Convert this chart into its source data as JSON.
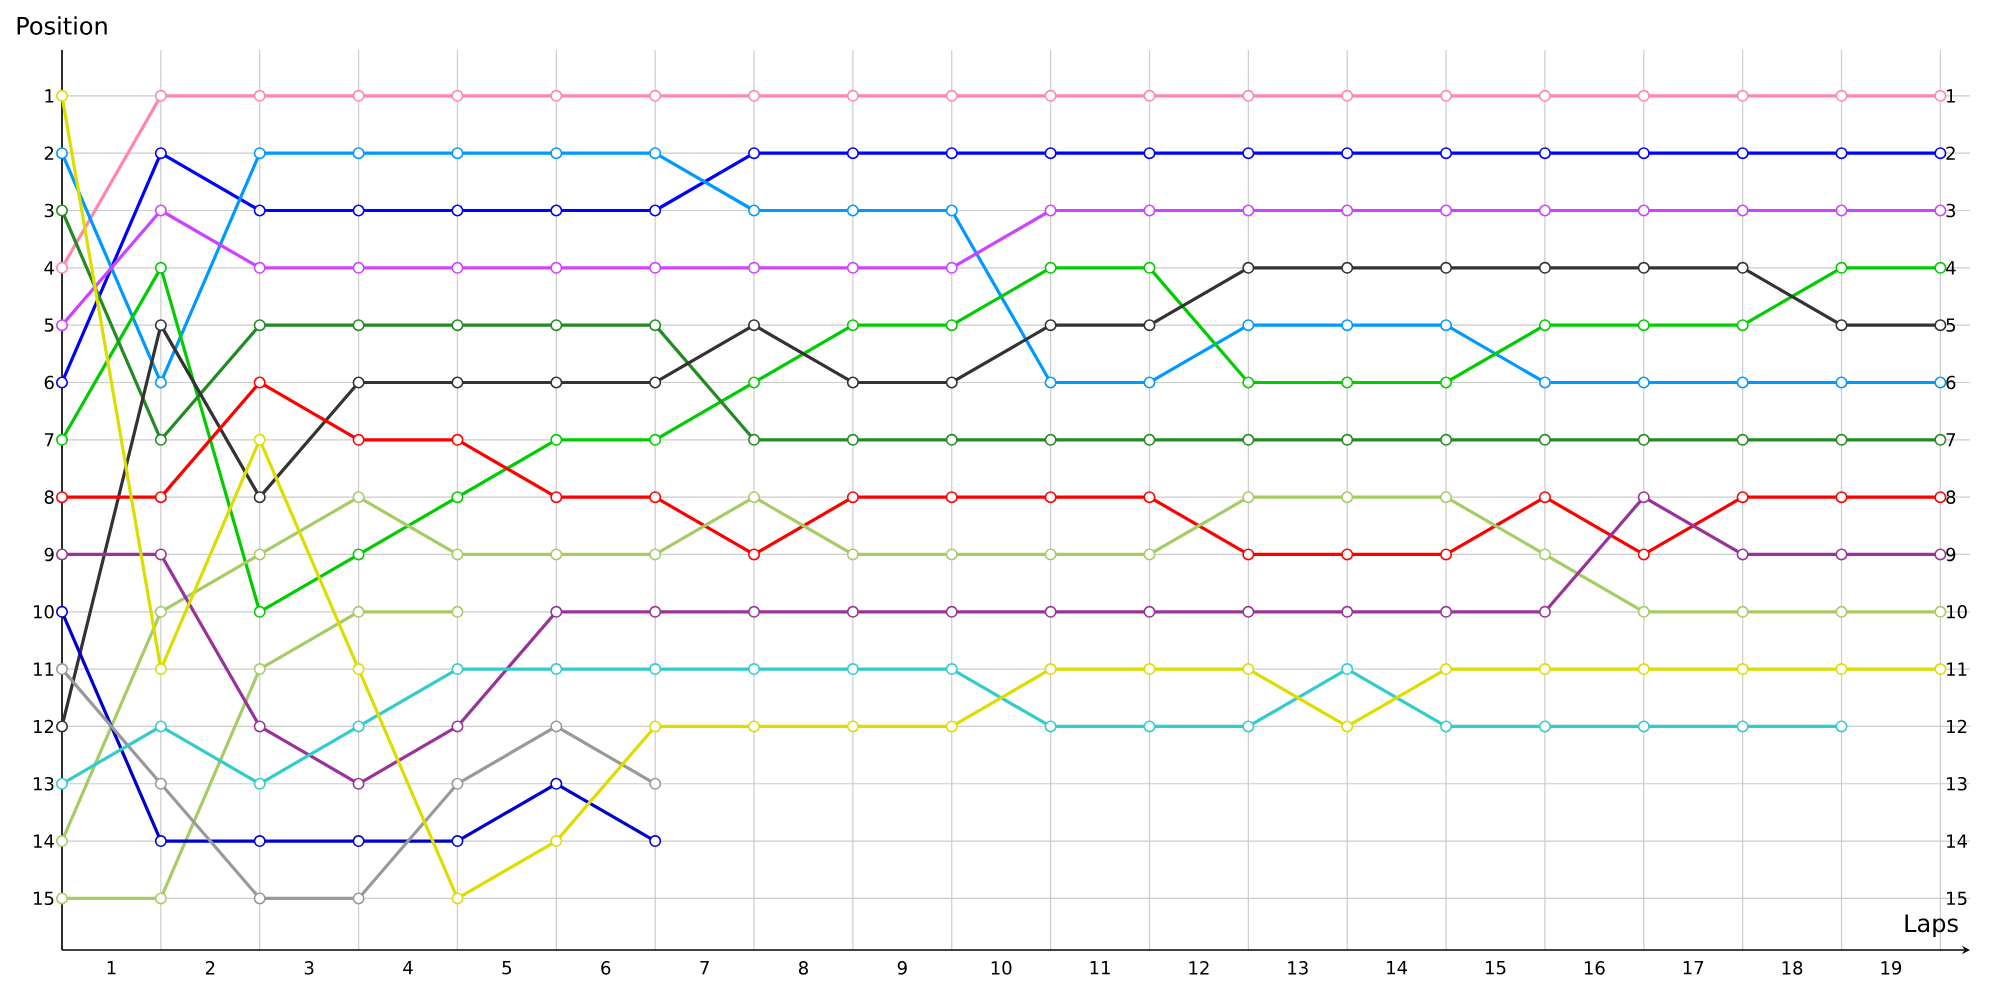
{
  "chart_data": {
    "type": "line",
    "xlabel": "Laps",
    "ylabel": "Position",
    "x": [
      0,
      1,
      2,
      3,
      4,
      5,
      6,
      7,
      8,
      9,
      10,
      11,
      12,
      13,
      14,
      15,
      16,
      17,
      18,
      19
    ],
    "xlim": [
      0,
      19.3
    ],
    "ylim": [
      15.9,
      0.2
    ],
    "y2lim": [
      15.9,
      0.2
    ],
    "xticks": [
      {
        "value": 0,
        "label": null
      },
      {
        "value": 1,
        "label": null
      },
      {
        "value": 2,
        "label": null
      },
      {
        "value": 3,
        "label": null
      },
      {
        "value": 4,
        "label": null
      },
      {
        "value": 5,
        "label": null
      },
      {
        "value": 6,
        "label": null
      },
      {
        "value": 7,
        "label": null
      },
      {
        "value": 8,
        "label": null
      },
      {
        "value": 9,
        "label": null
      },
      {
        "value": 10,
        "label": null
      },
      {
        "value": 11,
        "label": null
      },
      {
        "value": 12,
        "label": null
      },
      {
        "value": 13,
        "label": null
      },
      {
        "value": 14,
        "label": null
      },
      {
        "value": 15,
        "label": null
      },
      {
        "value": 16,
        "label": null
      },
      {
        "value": 17,
        "label": null
      },
      {
        "value": 18,
        "label": null
      },
      {
        "value": 19,
        "label": null
      },
      {
        "value": 0.5,
        "label": "1"
      },
      {
        "value": 1.5,
        "label": "2"
      },
      {
        "value": 2.5,
        "label": "3"
      },
      {
        "value": 3.5,
        "label": "4"
      },
      {
        "value": 4.5,
        "label": "5"
      },
      {
        "value": 5.5,
        "label": "6"
      },
      {
        "value": 6.5,
        "label": "7"
      },
      {
        "value": 7.5,
        "label": "8"
      },
      {
        "value": 8.5,
        "label": "9"
      },
      {
        "value": 9.5,
        "label": "10"
      },
      {
        "value": 10.5,
        "label": "11"
      },
      {
        "value": 11.5,
        "label": "12"
      },
      {
        "value": 12.5,
        "label": "13"
      },
      {
        "value": 13.5,
        "label": "14"
      },
      {
        "value": 14.5,
        "label": "15"
      },
      {
        "value": 15.5,
        "label": "16"
      },
      {
        "value": 16.5,
        "label": "17"
      },
      {
        "value": 17.5,
        "label": "18"
      },
      {
        "value": 18.5,
        "label": "19"
      }
    ],
    "yticks": [
      1,
      2,
      3,
      4,
      5,
      6,
      7,
      8,
      9,
      10,
      11,
      12,
      13,
      14,
      15
    ],
    "y2ticks": [
      1,
      2,
      3,
      4,
      5,
      6,
      7,
      8,
      9,
      10,
      11,
      12,
      13,
      14,
      15
    ],
    "grid": true,
    "marker": "circle",
    "line_style": "solid",
    "series": [
      {
        "color": "#ff88aa",
        "values": [
          4,
          1,
          1,
          1,
          1,
          1,
          1,
          1,
          1,
          1,
          1,
          1,
          1,
          1,
          1,
          1,
          1,
          1,
          1,
          1
        ]
      },
      {
        "color": "#0000ff",
        "values": [
          6,
          2,
          3,
          3,
          3,
          3,
          3,
          2,
          2,
          2,
          2,
          2,
          2,
          2,
          2,
          2,
          2,
          2,
          2,
          2
        ]
      },
      {
        "color": "#0099ff",
        "values": [
          2,
          6,
          2,
          2,
          2,
          2,
          2,
          3,
          3,
          3,
          6,
          6,
          5,
          5,
          5,
          6,
          6,
          6,
          6,
          6
        ]
      },
      {
        "color": "#cc44ff",
        "values": [
          5,
          3,
          4,
          4,
          4,
          4,
          4,
          4,
          4,
          4,
          3,
          3,
          3,
          3,
          3,
          3,
          3,
          3,
          3,
          3
        ]
      },
      {
        "color": "#00cc00",
        "values": [
          7,
          4,
          10,
          9,
          8,
          7,
          7,
          6,
          5,
          5,
          4,
          4,
          6,
          6,
          6,
          5,
          5,
          5,
          4,
          4
        ]
      },
      {
        "color": "#228b22",
        "values": [
          3,
          7,
          5,
          5,
          5,
          5,
          5,
          7,
          7,
          7,
          7,
          7,
          7,
          7,
          7,
          7,
          7,
          7,
          7,
          7
        ]
      },
      {
        "color": "#333333",
        "values": [
          12,
          5,
          8,
          6,
          6,
          6,
          6,
          5,
          6,
          6,
          5,
          5,
          4,
          4,
          4,
          4,
          4,
          4,
          5,
          5
        ]
      },
      {
        "color": "#ff0000",
        "values": [
          8,
          8,
          6,
          7,
          7,
          8,
          8,
          9,
          8,
          8,
          8,
          8,
          9,
          9,
          9,
          8,
          9,
          8,
          8,
          8
        ]
      },
      {
        "color": "#a6cc66",
        "values": [
          15,
          15,
          11,
          10,
          10,
          null,
          null,
          null,
          null,
          null,
          null,
          null,
          null,
          null,
          null,
          null,
          null,
          null,
          null,
          null
        ]
      },
      {
        "color": "#a6cc66",
        "values": [
          14,
          10,
          9,
          8,
          9,
          9,
          9,
          8,
          9,
          9,
          9,
          9,
          8,
          8,
          8,
          9,
          10,
          10,
          10,
          10
        ]
      },
      {
        "color": "#993399",
        "values": [
          9,
          9,
          12,
          13,
          12,
          10,
          10,
          10,
          10,
          10,
          10,
          10,
          10,
          10,
          10,
          10,
          8,
          9,
          9,
          9
        ]
      },
      {
        "color": "#0000cc",
        "values": [
          10,
          14,
          14,
          14,
          14,
          13,
          14,
          null,
          null,
          null,
          null,
          null,
          null,
          null,
          null,
          null,
          null,
          null,
          null,
          null
        ]
      },
      {
        "color": "#999999",
        "values": [
          11,
          13,
          15,
          15,
          13,
          12,
          13,
          null,
          null,
          null,
          null,
          null,
          null,
          null,
          null,
          null,
          null,
          null,
          null,
          null
        ]
      },
      {
        "color": "#33cccc",
        "values": [
          13,
          12,
          13,
          12,
          11,
          11,
          11,
          11,
          11,
          11,
          12,
          12,
          12,
          11,
          12,
          12,
          12,
          12,
          12,
          null
        ]
      },
      {
        "color": "#dddd00",
        "values": [
          1,
          11,
          7,
          11,
          15,
          14,
          12,
          12,
          12,
          12,
          11,
          11,
          11,
          12,
          11,
          11,
          11,
          11,
          11,
          11
        ]
      }
    ]
  }
}
